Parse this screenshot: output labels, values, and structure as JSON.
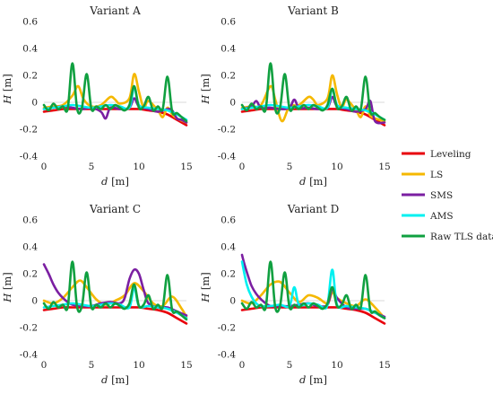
{
  "chart_data": [
    {
      "type": "line",
      "title": "Variant A",
      "xlabel": "d",
      "xunit": "[m]",
      "ylabel": "H",
      "yunit": "[m]",
      "xlim": [
        0,
        15
      ],
      "ylim": [
        -0.4,
        0.6
      ],
      "xticks": [
        "0",
        "5",
        "10",
        "15"
      ],
      "yticks": [
        "-0.4",
        "-0.2",
        "0",
        "0.2",
        "0.4",
        "0.6"
      ],
      "grid": false,
      "series": [
        {
          "name": "Leveling",
          "color": "#e8000b",
          "x": [
            0,
            1,
            2,
            3,
            4,
            5,
            6,
            7,
            8,
            9,
            10,
            11,
            12,
            13,
            14,
            15
          ],
          "y": [
            -0.07,
            -0.06,
            -0.05,
            -0.05,
            -0.05,
            -0.05,
            -0.05,
            -0.05,
            -0.05,
            -0.05,
            -0.05,
            -0.06,
            -0.07,
            -0.09,
            -0.13,
            -0.17
          ]
        },
        {
          "name": "LS",
          "color": "#f5b800",
          "x": [
            0,
            1,
            2,
            3,
            3.6,
            4.2,
            5,
            6,
            7,
            7.5,
            8,
            9,
            9.5,
            10,
            10.5,
            11,
            12,
            12.5,
            13,
            13.5,
            14,
            15
          ],
          "y": [
            -0.04,
            -0.03,
            -0.02,
            0.05,
            0.12,
            0.02,
            -0.03,
            -0.02,
            0.04,
            0.02,
            -0.01,
            0.03,
            0.21,
            0.08,
            -0.04,
            0.01,
            -0.06,
            -0.11,
            -0.04,
            -0.09,
            -0.12,
            -0.15
          ]
        },
        {
          "name": "SMS",
          "color": "#7b1fa2",
          "x": [
            0,
            1,
            2,
            3,
            4,
            5,
            6,
            6.5,
            7,
            8,
            9,
            9.5,
            10,
            11,
            12,
            13,
            13.5,
            14,
            14.5,
            15
          ],
          "y": [
            -0.05,
            -0.04,
            -0.03,
            -0.04,
            -0.05,
            -0.04,
            -0.07,
            -0.12,
            -0.04,
            -0.05,
            -0.04,
            0.03,
            -0.03,
            -0.05,
            -0.07,
            -0.05,
            -0.06,
            -0.12,
            -0.13,
            -0.15
          ]
        },
        {
          "name": "AMS",
          "color": "#00f0f0",
          "x": [
            0,
            1,
            2,
            3,
            4,
            5,
            6,
            7,
            8,
            9,
            9.5,
            10,
            11,
            12,
            13,
            14,
            15
          ],
          "y": [
            -0.05,
            -0.04,
            -0.03,
            -0.02,
            -0.03,
            -0.04,
            -0.03,
            -0.02,
            -0.03,
            -0.04,
            0.11,
            -0.02,
            -0.04,
            -0.05,
            -0.06,
            -0.09,
            -0.13
          ]
        },
        {
          "name": "Raw TLS data",
          "color": "#10a040",
          "x": [
            0,
            0.5,
            1,
            1.5,
            2,
            2.5,
            3,
            3.5,
            4,
            4.5,
            5,
            5.5,
            6,
            6.5,
            7,
            7.5,
            8,
            8.5,
            9,
            9.5,
            10,
            10.5,
            11,
            11.5,
            12,
            12.5,
            13,
            13.5,
            14,
            14.5,
            15
          ],
          "y": [
            -0.02,
            -0.06,
            -0.01,
            -0.05,
            -0.03,
            -0.05,
            0.29,
            -0.05,
            -0.04,
            0.21,
            -0.05,
            -0.03,
            -0.05,
            -0.02,
            -0.05,
            -0.02,
            -0.04,
            -0.06,
            -0.02,
            0.12,
            -0.04,
            -0.03,
            0.04,
            -0.06,
            -0.03,
            -0.05,
            0.19,
            -0.07,
            -0.08,
            -0.11,
            -0.14
          ]
        }
      ]
    },
    {
      "type": "line",
      "title": "Variant B",
      "xlabel": "d",
      "xunit": "[m]",
      "ylabel": "H",
      "yunit": "[m]",
      "xlim": [
        0,
        15
      ],
      "ylim": [
        -0.4,
        0.6
      ],
      "xticks": [
        "0",
        "5",
        "10",
        "15"
      ],
      "yticks": [
        "-0.4",
        "-0.2",
        "0",
        "0.2",
        "0.4",
        "0.6"
      ],
      "grid": false,
      "series": [
        {
          "name": "Leveling",
          "color": "#e8000b",
          "x": [
            0,
            1,
            2,
            3,
            4,
            5,
            6,
            7,
            8,
            9,
            10,
            11,
            12,
            13,
            14,
            15
          ],
          "y": [
            -0.07,
            -0.06,
            -0.05,
            -0.05,
            -0.05,
            -0.05,
            -0.05,
            -0.05,
            -0.05,
            -0.05,
            -0.05,
            -0.06,
            -0.07,
            -0.09,
            -0.13,
            -0.17
          ]
        },
        {
          "name": "LS",
          "color": "#f5b800",
          "x": [
            0,
            1,
            2,
            3,
            3.5,
            4.2,
            5,
            6,
            7,
            7.5,
            8,
            9,
            9.5,
            10,
            10.5,
            11,
            12,
            12.5,
            13,
            13.5,
            14,
            15
          ],
          "y": [
            -0.04,
            -0.03,
            -0.02,
            0.12,
            0.02,
            -0.14,
            -0.03,
            -0.02,
            0.04,
            0.02,
            -0.02,
            0.03,
            0.2,
            0.06,
            -0.04,
            0.02,
            -0.06,
            -0.11,
            -0.03,
            -0.1,
            -0.12,
            -0.14
          ]
        },
        {
          "name": "SMS",
          "color": "#7b1fa2",
          "x": [
            0,
            1,
            1.5,
            2,
            3,
            4,
            5,
            5.5,
            6,
            7,
            8,
            9,
            9.5,
            10,
            11,
            12,
            13,
            13.5,
            14,
            15
          ],
          "y": [
            -0.05,
            -0.03,
            0.01,
            -0.04,
            -0.04,
            -0.05,
            -0.04,
            0.02,
            -0.04,
            -0.04,
            -0.05,
            -0.04,
            0.04,
            -0.03,
            -0.05,
            -0.07,
            -0.05,
            0.01,
            -0.14,
            -0.15
          ]
        },
        {
          "name": "AMS",
          "color": "#00f0f0",
          "x": [
            0,
            1,
            2,
            3,
            4,
            5,
            6,
            7,
            8,
            9,
            9.5,
            10,
            11,
            12,
            13,
            14,
            15
          ],
          "y": [
            -0.05,
            -0.04,
            -0.03,
            -0.02,
            -0.03,
            -0.04,
            -0.03,
            -0.02,
            -0.03,
            -0.04,
            0.1,
            -0.02,
            -0.04,
            -0.05,
            -0.06,
            -0.09,
            -0.13
          ]
        },
        {
          "name": "Raw TLS data",
          "color": "#10a040",
          "x": [
            0,
            0.5,
            1,
            1.5,
            2,
            2.5,
            3,
            3.5,
            4,
            4.5,
            5,
            5.5,
            6,
            6.5,
            7,
            7.5,
            8,
            8.5,
            9,
            9.5,
            10,
            10.5,
            11,
            11.5,
            12,
            12.5,
            13,
            13.5,
            14,
            14.5,
            15
          ],
          "y": [
            -0.02,
            -0.06,
            -0.01,
            -0.05,
            -0.03,
            -0.05,
            0.29,
            -0.05,
            -0.04,
            0.21,
            -0.05,
            -0.03,
            -0.05,
            -0.02,
            -0.05,
            -0.02,
            -0.04,
            -0.06,
            -0.02,
            0.1,
            -0.04,
            -0.03,
            0.04,
            -0.06,
            -0.03,
            -0.05,
            0.19,
            -0.07,
            -0.08,
            -0.11,
            -0.13
          ]
        }
      ]
    },
    {
      "type": "line",
      "title": "Variant C",
      "xlabel": "d",
      "xunit": "[m]",
      "ylabel": "H",
      "yunit": "[m]",
      "xlim": [
        0,
        15
      ],
      "ylim": [
        -0.4,
        0.6
      ],
      "xticks": [
        "0",
        "5",
        "10",
        "15"
      ],
      "yticks": [
        "-0.4",
        "-0.2",
        "0",
        "0.2",
        "0.4",
        "0.6"
      ],
      "grid": false,
      "series": [
        {
          "name": "Leveling",
          "color": "#e8000b",
          "x": [
            0,
            1,
            2,
            3,
            4,
            5,
            6,
            7,
            8,
            9,
            10,
            11,
            12,
            13,
            14,
            15
          ],
          "y": [
            -0.07,
            -0.06,
            -0.05,
            -0.05,
            -0.05,
            -0.05,
            -0.05,
            -0.05,
            -0.05,
            -0.05,
            -0.05,
            -0.06,
            -0.07,
            -0.09,
            -0.13,
            -0.17
          ]
        },
        {
          "name": "LS",
          "color": "#f5b800",
          "x": [
            0,
            1,
            2,
            3,
            3.8,
            4.5,
            5.5,
            6.5,
            7.5,
            8.5,
            9.5,
            10.5,
            11.5,
            12.5,
            13.5,
            14.5,
            15
          ],
          "y": [
            0.0,
            -0.02,
            0.02,
            0.1,
            0.15,
            0.1,
            0.01,
            -0.03,
            0.0,
            0.04,
            0.13,
            0.07,
            -0.02,
            -0.04,
            0.03,
            -0.06,
            -0.12
          ]
        },
        {
          "name": "SMS",
          "color": "#7b1fa2",
          "x": [
            0,
            0.5,
            1,
            1.5,
            2,
            2.5,
            3,
            4,
            5,
            6,
            7,
            8,
            8.5,
            9,
            9.5,
            10,
            10.5,
            11,
            12,
            13,
            14,
            15
          ],
          "y": [
            0.27,
            0.2,
            0.12,
            0.06,
            0.02,
            -0.01,
            -0.03,
            -0.04,
            -0.04,
            -0.02,
            -0.01,
            -0.02,
            0.02,
            0.16,
            0.23,
            0.2,
            0.08,
            -0.02,
            -0.05,
            -0.05,
            -0.08,
            -0.11
          ]
        },
        {
          "name": "AMS",
          "color": "#00f0f0",
          "x": [
            0,
            1,
            2,
            3,
            4,
            5,
            6,
            7,
            8,
            9,
            9.5,
            10,
            11,
            12,
            13,
            14,
            15
          ],
          "y": [
            -0.05,
            -0.04,
            -0.03,
            -0.02,
            -0.03,
            -0.04,
            -0.03,
            -0.02,
            -0.03,
            -0.05,
            0.1,
            -0.04,
            -0.04,
            -0.05,
            -0.06,
            -0.09,
            -0.13
          ]
        },
        {
          "name": "Raw TLS data",
          "color": "#10a040",
          "x": [
            0,
            0.5,
            1,
            1.5,
            2,
            2.5,
            3,
            3.5,
            4,
            4.5,
            5,
            5.5,
            6,
            6.5,
            7,
            7.5,
            8,
            8.5,
            9,
            9.5,
            10,
            10.5,
            11,
            11.5,
            12,
            12.5,
            13,
            13.5,
            14,
            14.5,
            15
          ],
          "y": [
            -0.02,
            -0.06,
            -0.01,
            -0.05,
            -0.03,
            -0.05,
            0.29,
            -0.05,
            -0.04,
            0.21,
            -0.05,
            -0.03,
            -0.05,
            -0.02,
            -0.05,
            -0.02,
            -0.04,
            -0.06,
            -0.02,
            0.12,
            -0.04,
            -0.03,
            0.04,
            -0.06,
            -0.03,
            -0.05,
            0.19,
            -0.07,
            -0.08,
            -0.11,
            -0.14
          ]
        }
      ]
    },
    {
      "type": "line",
      "title": "Variant D",
      "xlabel": "d",
      "xunit": "[m]",
      "ylabel": "H",
      "yunit": "[m]",
      "xlim": [
        0,
        15
      ],
      "ylim": [
        -0.4,
        0.6
      ],
      "xticks": [
        "0",
        "5",
        "10",
        "15"
      ],
      "yticks": [
        "-0.4",
        "-0.2",
        "0",
        "0.2",
        "0.4",
        "0.6"
      ],
      "grid": false,
      "series": [
        {
          "name": "Leveling",
          "color": "#e8000b",
          "x": [
            0,
            1,
            2,
            3,
            4,
            5,
            6,
            7,
            8,
            9,
            10,
            11,
            12,
            13,
            14,
            15
          ],
          "y": [
            -0.07,
            -0.06,
            -0.05,
            -0.05,
            -0.05,
            -0.05,
            -0.05,
            -0.05,
            -0.05,
            -0.05,
            -0.05,
            -0.06,
            -0.07,
            -0.09,
            -0.13,
            -0.17
          ]
        },
        {
          "name": "LS",
          "color": "#f5b800",
          "x": [
            0,
            1,
            2,
            3,
            4,
            5,
            6,
            7,
            8,
            9,
            9.5,
            10,
            11,
            12,
            13,
            14,
            15
          ],
          "y": [
            0.0,
            -0.02,
            0.04,
            0.12,
            0.14,
            0.06,
            -0.01,
            0.04,
            0.02,
            -0.02,
            0.06,
            0.02,
            -0.02,
            -0.04,
            0.01,
            -0.05,
            -0.13
          ]
        },
        {
          "name": "SMS",
          "color": "#7b1fa2",
          "x": [
            0,
            0.3,
            0.7,
            1,
            1.5,
            2,
            2.5,
            3,
            4,
            5,
            6,
            7,
            8,
            9,
            9.5,
            10,
            11,
            12,
            13,
            14,
            15
          ],
          "y": [
            0.34,
            0.26,
            0.17,
            0.11,
            0.05,
            0.01,
            -0.02,
            -0.04,
            -0.04,
            -0.04,
            -0.03,
            -0.02,
            -0.04,
            -0.03,
            0.09,
            0.02,
            -0.05,
            -0.06,
            -0.06,
            -0.09,
            -0.12
          ]
        },
        {
          "name": "AMS",
          "color": "#00f0f0",
          "x": [
            0,
            0.5,
            1,
            1.5,
            2,
            3,
            4,
            5,
            5.5,
            6,
            7,
            8,
            8.5,
            9,
            9.5,
            10,
            11,
            12,
            13,
            14,
            15
          ],
          "y": [
            0.29,
            0.12,
            0.03,
            -0.02,
            -0.04,
            -0.04,
            -0.03,
            -0.04,
            0.1,
            -0.03,
            -0.02,
            -0.03,
            -0.05,
            -0.03,
            0.23,
            -0.03,
            -0.04,
            -0.05,
            -0.06,
            -0.09,
            -0.13
          ]
        },
        {
          "name": "Raw TLS data",
          "color": "#10a040",
          "x": [
            0,
            0.5,
            1,
            1.5,
            2,
            2.5,
            3,
            3.5,
            4,
            4.5,
            5,
            5.5,
            6,
            6.5,
            7,
            7.5,
            8,
            8.5,
            9,
            9.5,
            10,
            10.5,
            11,
            11.5,
            12,
            12.5,
            13,
            13.5,
            14,
            14.5,
            15
          ],
          "y": [
            -0.02,
            -0.06,
            -0.01,
            -0.05,
            -0.03,
            -0.05,
            0.29,
            -0.05,
            -0.04,
            0.21,
            -0.05,
            -0.03,
            -0.05,
            -0.02,
            -0.05,
            -0.02,
            -0.04,
            -0.06,
            -0.02,
            0.1,
            -0.04,
            -0.03,
            0.04,
            -0.06,
            -0.03,
            -0.05,
            0.19,
            -0.07,
            -0.08,
            -0.11,
            -0.13
          ]
        }
      ]
    }
  ],
  "legend": {
    "placement": "right",
    "items": [
      {
        "label": "Leveling",
        "color": "#e8000b"
      },
      {
        "label": "LS",
        "color": "#f5b800"
      },
      {
        "label": "SMS",
        "color": "#7b1fa2"
      },
      {
        "label": "AMS",
        "color": "#00f0f0"
      },
      {
        "label": "Raw TLS data",
        "color": "#10a040"
      }
    ]
  }
}
